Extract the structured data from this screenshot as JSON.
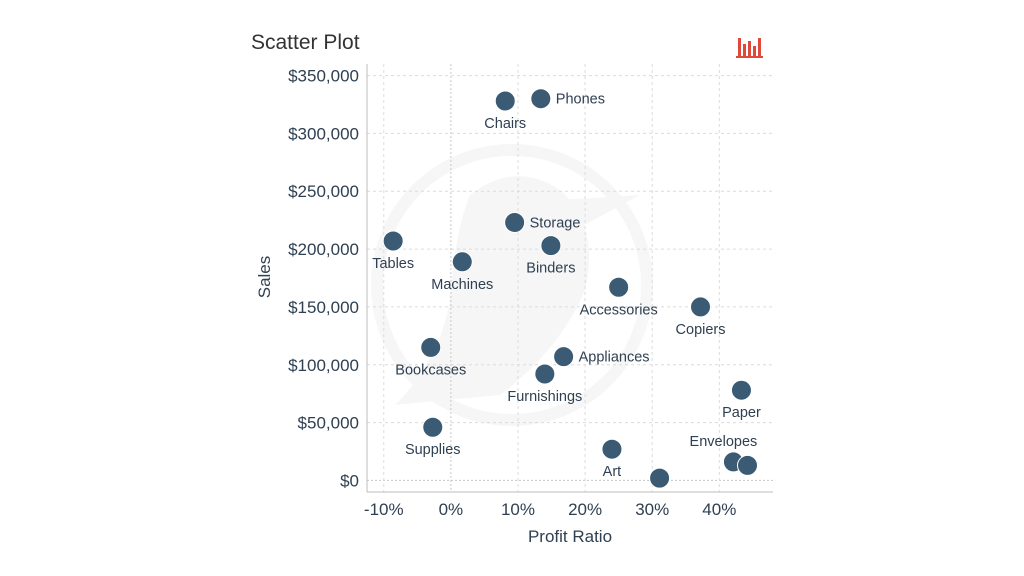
{
  "chart_data": {
    "type": "scatter",
    "title": "Scatter Plot",
    "xlabel": "Profit Ratio",
    "ylabel": "Sales",
    "xlim": [
      -0.125,
      0.48
    ],
    "ylim": [
      -10000,
      360000
    ],
    "x_ticks": [
      -0.1,
      0,
      0.1,
      0.2,
      0.3,
      0.4
    ],
    "x_tick_labels": [
      "-10%",
      "0%",
      "10%",
      "20%",
      "30%",
      "40%"
    ],
    "y_ticks": [
      0,
      50000,
      100000,
      150000,
      200000,
      250000,
      300000,
      350000
    ],
    "y_tick_labels": [
      "$0",
      "$50,000",
      "$100,000",
      "$150,000",
      "$200,000",
      "$250,000",
      "$300,000",
      "$350,000"
    ],
    "grid": true,
    "point_color": "#3b5a73",
    "points": [
      {
        "label": "Phones",
        "x": 0.134,
        "y": 330000,
        "label_pos": "right"
      },
      {
        "label": "Chairs",
        "x": 0.081,
        "y": 328000,
        "label_pos": "below"
      },
      {
        "label": "Storage",
        "x": 0.095,
        "y": 223000,
        "label_pos": "right"
      },
      {
        "label": "Tables",
        "x": -0.086,
        "y": 207000,
        "label_pos": "below"
      },
      {
        "label": "Binders",
        "x": 0.149,
        "y": 203000,
        "label_pos": "below"
      },
      {
        "label": "Machines",
        "x": 0.017,
        "y": 189000,
        "label_pos": "below"
      },
      {
        "label": "Accessories",
        "x": 0.25,
        "y": 167000,
        "label_pos": "below"
      },
      {
        "label": "Copiers",
        "x": 0.372,
        "y": 150000,
        "label_pos": "below"
      },
      {
        "label": "Bookcases",
        "x": -0.03,
        "y": 115000,
        "label_pos": "below"
      },
      {
        "label": "Appliances",
        "x": 0.168,
        "y": 107000,
        "label_pos": "right"
      },
      {
        "label": "Furnishings",
        "x": 0.14,
        "y": 92000,
        "label_pos": "below"
      },
      {
        "label": "Paper",
        "x": 0.433,
        "y": 78000,
        "label_pos": "below"
      },
      {
        "label": "Supplies",
        "x": -0.027,
        "y": 46000,
        "label_pos": "below"
      },
      {
        "label": "Art",
        "x": 0.24,
        "y": 27000,
        "label_pos": "below"
      },
      {
        "label": "Envelopes",
        "x": 0.421,
        "y": 16000,
        "label_pos": "above"
      },
      {
        "label": "",
        "x": 0.442,
        "y": 13000,
        "label_pos": "none"
      },
      {
        "label": "",
        "x": 0.311,
        "y": 2000,
        "label_pos": "none"
      }
    ]
  },
  "icons": {
    "chart_icon": "bar-chart-icon",
    "chart_icon_color": "#e0483b",
    "watermark": "bird-logo-watermark"
  }
}
